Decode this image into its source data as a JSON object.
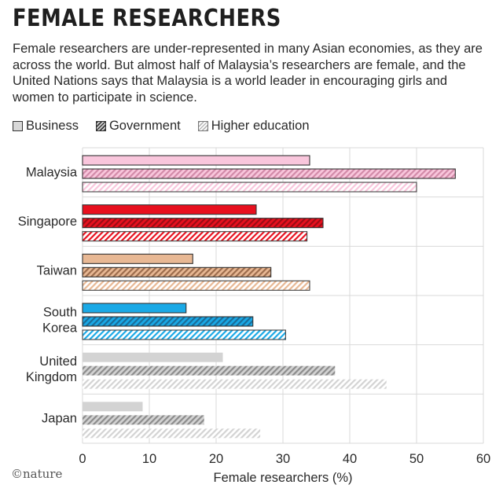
{
  "header": {
    "title": "FEMALE RESEARCHERS",
    "subtitle": "Female researchers are under-represented in many Asian economies, as they are across the world. But almost half of Malaysia’s researchers are female, and the United Nations says that Malaysia is a world leader in encouraging girls and women to participate in science."
  },
  "credit": "©nature",
  "chart_data": {
    "type": "bar",
    "orientation": "horizontal",
    "categories": [
      {
        "lines": [
          "Malaysia"
        ]
      },
      {
        "lines": [
          "Singapore"
        ]
      },
      {
        "lines": [
          "Taiwan"
        ]
      },
      {
        "lines": [
          "South",
          "Korea"
        ]
      },
      {
        "lines": [
          "United",
          "Kingdom"
        ]
      },
      {
        "lines": [
          "Japan"
        ]
      }
    ],
    "series": [
      {
        "name": "Business",
        "values": [
          34,
          26,
          16.5,
          15.5,
          21,
          9
        ]
      },
      {
        "name": "Government",
        "values": [
          55.8,
          36,
          28.2,
          25.5,
          37.8,
          18.2
        ]
      },
      {
        "name": "Higher education",
        "values": [
          50,
          33.6,
          34,
          30.4,
          45.5,
          26.6
        ]
      }
    ],
    "colors": [
      {
        "base": "#f9c6dc",
        "stripe": "#d28aa8"
      },
      {
        "base": "#e8101e",
        "stripe": "#9a0c14"
      },
      {
        "base": "#e8b894",
        "stripe": "#9c6c4c"
      },
      {
        "base": "#1aa9e6",
        "stripe": "#1a6c98"
      },
      {
        "base": "#d3d3d3",
        "stripe": "#8c8c8c"
      },
      {
        "base": "#d3d3d3",
        "stripe": "#8c8c8c"
      }
    ],
    "xlabel": "Female researchers (%)",
    "xlim": [
      0,
      60
    ],
    "xticks": [
      0,
      10,
      20,
      30,
      40,
      50,
      60
    ],
    "grid": true,
    "legend_position": "top-left"
  }
}
